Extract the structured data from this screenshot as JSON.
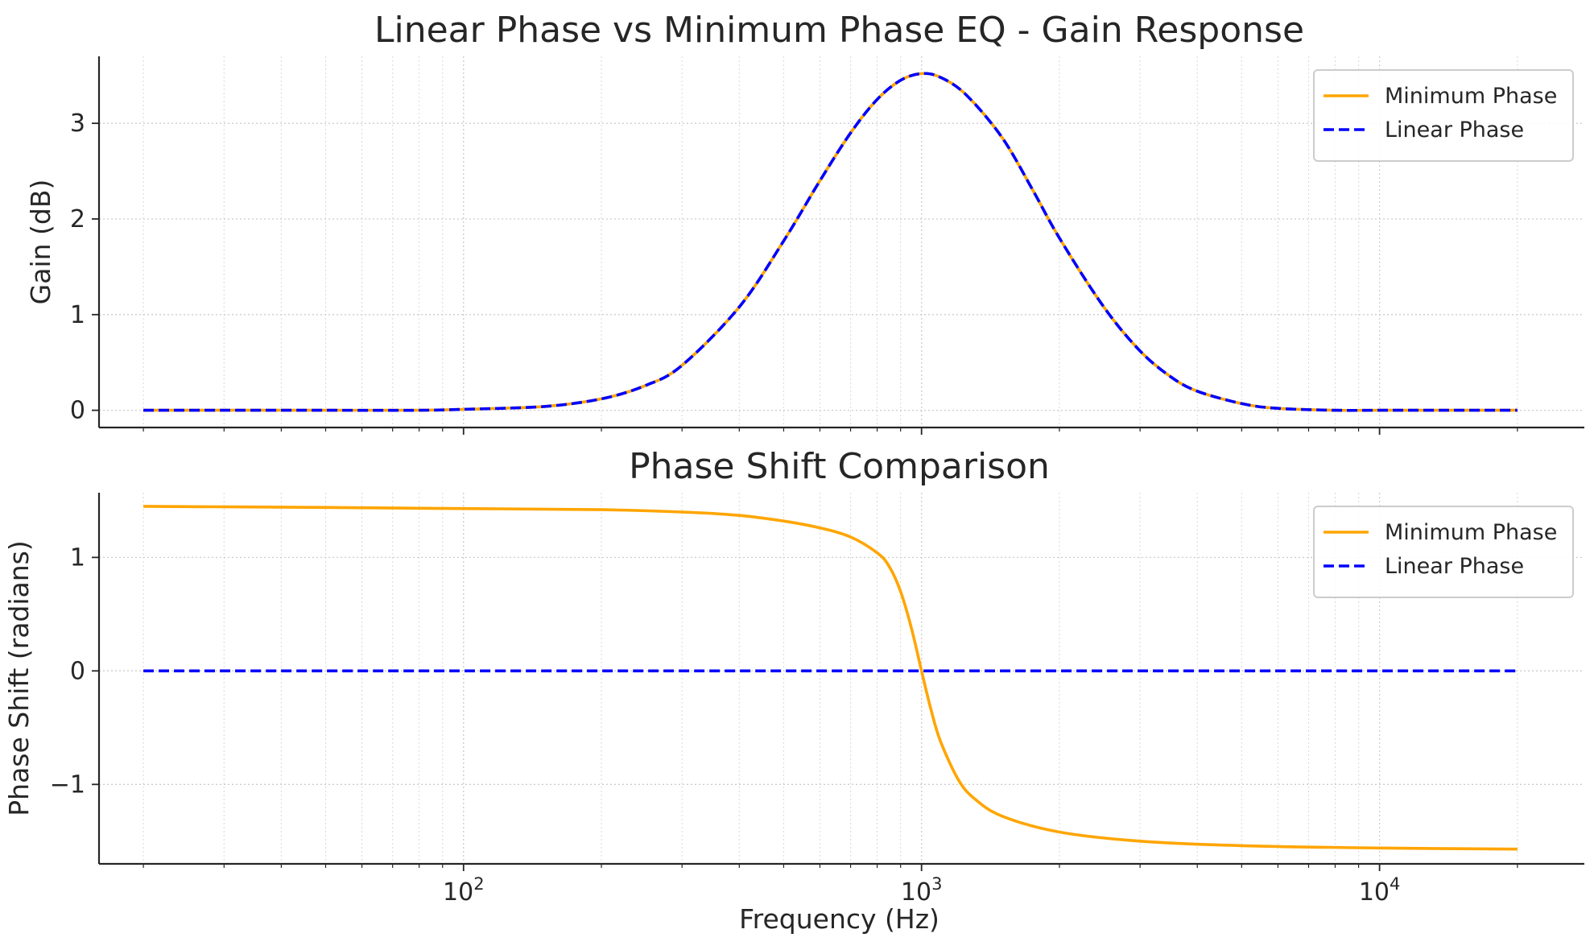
{
  "chart_data": [
    {
      "type": "line",
      "title": "Linear Phase vs Minimum Phase EQ - Gain Response",
      "xlabel": "",
      "ylabel": "Gain (dB)",
      "xscale": "log",
      "xlim": [
        16,
        28000
      ],
      "ylim": [
        -0.18,
        3.7
      ],
      "yticks": [
        0,
        1,
        2,
        3
      ],
      "ytick_labels": [
        "0",
        "1",
        "2",
        "3"
      ],
      "grid": true,
      "legend_position": "top-right",
      "x": [
        20,
        30,
        50,
        80,
        100,
        150,
        200,
        250,
        300,
        400,
        500,
        600,
        700,
        800,
        900,
        1000,
        1100,
        1250,
        1500,
        1750,
        2000,
        2500,
        3000,
        3500,
        4000,
        5000,
        6000,
        8000,
        10000,
        14000,
        20000
      ],
      "series": [
        {
          "name": "Minimum Phase",
          "color": "#ffa500",
          "style": "solid",
          "values": [
            0.0,
            0.0,
            0.0,
            0.0,
            0.01,
            0.04,
            0.12,
            0.26,
            0.47,
            1.08,
            1.77,
            2.4,
            2.9,
            3.25,
            3.45,
            3.52,
            3.48,
            3.3,
            2.85,
            2.3,
            1.8,
            1.08,
            0.62,
            0.35,
            0.2,
            0.07,
            0.02,
            0.0,
            0.0,
            0.0,
            0.0
          ]
        },
        {
          "name": "Linear Phase",
          "color": "#0000ff",
          "style": "dashed",
          "values": [
            0.0,
            0.0,
            0.0,
            0.0,
            0.01,
            0.04,
            0.12,
            0.26,
            0.47,
            1.08,
            1.77,
            2.4,
            2.9,
            3.25,
            3.45,
            3.52,
            3.48,
            3.3,
            2.85,
            2.3,
            1.8,
            1.08,
            0.62,
            0.35,
            0.2,
            0.07,
            0.02,
            0.0,
            0.0,
            0.0,
            0.0
          ]
        }
      ]
    },
    {
      "type": "line",
      "title": "Phase Shift Comparison",
      "xlabel": "Frequency (Hz)",
      "ylabel": "Phase Shift (radians)",
      "xscale": "log",
      "xlim": [
        16,
        28000
      ],
      "xticks": [
        100,
        1000,
        10000
      ],
      "xtick_labels": [
        {
          "base": "10",
          "exp": "2"
        },
        {
          "base": "10",
          "exp": "3"
        },
        {
          "base": "10",
          "exp": "4"
        }
      ],
      "ylim": [
        -1.7,
        1.57
      ],
      "yticks": [
        -1,
        0,
        1
      ],
      "ytick_labels": [
        "−1",
        "0",
        "1"
      ],
      "grid": true,
      "legend_position": "top-right",
      "x": [
        20,
        50,
        100,
        200,
        300,
        400,
        500,
        600,
        700,
        800,
        850,
        900,
        950,
        1000,
        1050,
        1100,
        1200,
        1300,
        1500,
        2000,
        3000,
        5000,
        10000,
        20000
      ],
      "series": [
        {
          "name": "Minimum Phase",
          "color": "#ffa500",
          "style": "solid",
          "values": [
            1.45,
            1.44,
            1.43,
            1.42,
            1.4,
            1.37,
            1.32,
            1.26,
            1.18,
            1.04,
            0.92,
            0.7,
            0.38,
            0.0,
            -0.35,
            -0.62,
            -0.95,
            -1.12,
            -1.28,
            -1.42,
            -1.5,
            -1.54,
            -1.56,
            -1.57
          ]
        },
        {
          "name": "Linear Phase",
          "color": "#0000ff",
          "style": "dashed",
          "values": [
            0,
            0,
            0,
            0,
            0,
            0,
            0,
            0,
            0,
            0,
            0,
            0,
            0,
            0,
            0,
            0,
            0,
            0,
            0,
            0,
            0,
            0,
            0,
            0
          ]
        }
      ]
    }
  ]
}
